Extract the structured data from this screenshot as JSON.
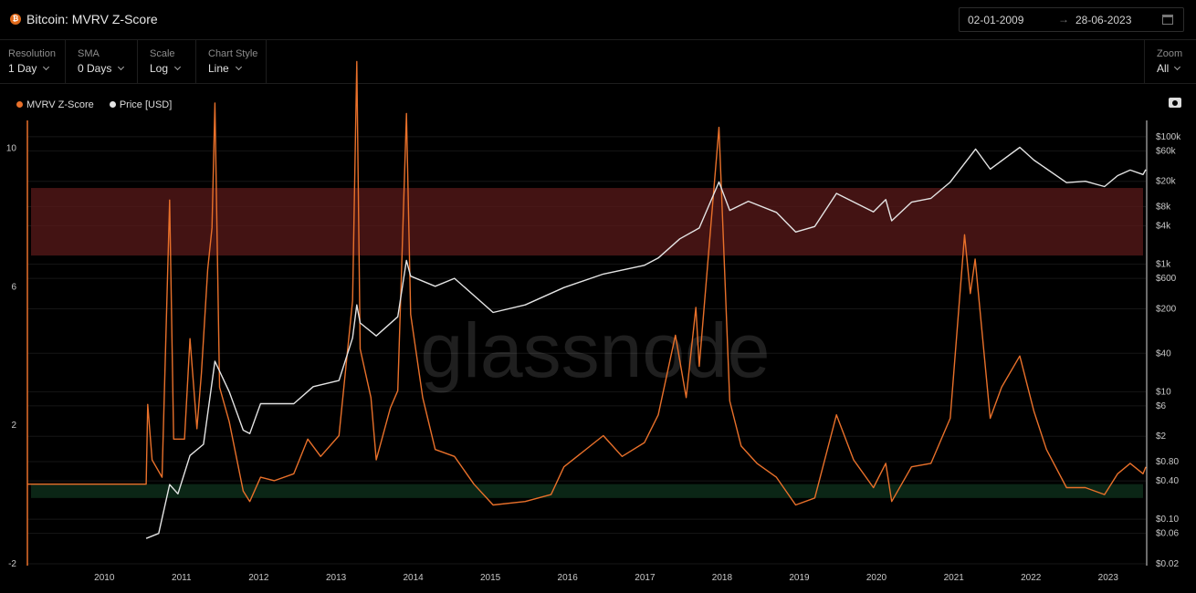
{
  "header": {
    "logo_glyph": "₿",
    "title": "Bitcoin: MVRV Z-Score",
    "date_from": "02-01-2009",
    "date_arrow": "→",
    "date_to": "28-06-2023"
  },
  "toolbar": {
    "controls": [
      {
        "label": "Resolution",
        "value": "1 Day"
      },
      {
        "label": "SMA",
        "value": "0 Days"
      },
      {
        "label": "Scale",
        "value": "Log"
      },
      {
        "label": "Chart Style",
        "value": "Line"
      }
    ],
    "zoom": {
      "label": "Zoom",
      "value": "All"
    }
  },
  "watermark": "glassnode",
  "colors": {
    "mvrv": "#e8702a",
    "price": "#e4e4e4",
    "red_band": "#5a1a1a",
    "green_band": "#0c2a18",
    "background": "#000000"
  },
  "chart_data": {
    "type": "line",
    "title": "Bitcoin: MVRV Z-Score",
    "legend_placement": "top-left",
    "grid": true,
    "x_range": [
      "2009-01-02",
      "2023-06-28"
    ],
    "x_ticks": [
      "2010",
      "2011",
      "2012",
      "2013",
      "2014",
      "2015",
      "2016",
      "2017",
      "2018",
      "2019",
      "2020",
      "2021",
      "2022",
      "2023"
    ],
    "left_axis": {
      "scale": "linear",
      "range": [
        -2,
        10.8
      ],
      "ticks": [
        "-2",
        "2",
        "6",
        "10"
      ]
    },
    "right_axis": {
      "scale": "log",
      "range": [
        0.02,
        180000
      ],
      "ticks": [
        "$100k",
        "$60k",
        "$20k",
        "$8k",
        "$4k",
        "$1k",
        "$600",
        "$200",
        "$40",
        "$10",
        "$6",
        "$2",
        "$0.80",
        "$0.40",
        "$0.10",
        "$0.06",
        "$0.02"
      ],
      "tick_values": [
        100000,
        60000,
        20000,
        8000,
        4000,
        1000,
        600,
        200,
        40,
        10,
        6,
        2,
        0.8,
        0.4,
        0.1,
        0.06,
        0.02
      ]
    },
    "bands": [
      {
        "axis": "left",
        "from": 6.9,
        "to": 8.85,
        "color": "red"
      },
      {
        "axis": "left",
        "from": -0.1,
        "to": 0.3,
        "color": "green"
      }
    ],
    "series": [
      {
        "name": "MVRV Z-Score",
        "axis": "left",
        "points": [
          [
            "2009-01-02",
            0.3
          ],
          [
            "2010-07-18",
            0.3
          ],
          [
            "2010-07-25",
            2.6
          ],
          [
            "2010-08-15",
            1.0
          ],
          [
            "2010-10-01",
            0.5
          ],
          [
            "2010-11-06",
            8.5
          ],
          [
            "2010-11-25",
            1.6
          ],
          [
            "2011-01-15",
            1.6
          ],
          [
            "2011-02-10",
            4.5
          ],
          [
            "2011-03-15",
            1.9
          ],
          [
            "2011-04-05",
            3.5
          ],
          [
            "2011-05-05",
            6.5
          ],
          [
            "2011-05-25",
            7.7
          ],
          [
            "2011-06-08",
            11.3
          ],
          [
            "2011-06-30",
            3.1
          ],
          [
            "2011-08-15",
            2.1
          ],
          [
            "2011-10-20",
            0.1
          ],
          [
            "2011-11-20",
            -0.2
          ],
          [
            "2012-01-10",
            0.5
          ],
          [
            "2012-03-15",
            0.4
          ],
          [
            "2012-06-15",
            0.6
          ],
          [
            "2012-08-20",
            1.6
          ],
          [
            "2012-10-20",
            1.1
          ],
          [
            "2013-01-15",
            1.7
          ],
          [
            "2013-03-20",
            5.6
          ],
          [
            "2013-04-09",
            12.5
          ],
          [
            "2013-04-25",
            4.2
          ],
          [
            "2013-06-15",
            2.8
          ],
          [
            "2013-07-10",
            1.0
          ],
          [
            "2013-09-15",
            2.5
          ],
          [
            "2013-10-20",
            3.0
          ],
          [
            "2013-11-30",
            11.0
          ],
          [
            "2013-12-20",
            5.2
          ],
          [
            "2014-02-15",
            2.8
          ],
          [
            "2014-04-15",
            1.3
          ],
          [
            "2014-07-15",
            1.1
          ],
          [
            "2014-10-15",
            0.3
          ],
          [
            "2015-01-14",
            -0.3
          ],
          [
            "2015-06-15",
            -0.2
          ],
          [
            "2015-10-15",
            0.0
          ],
          [
            "2015-12-15",
            0.8
          ],
          [
            "2016-06-18",
            1.7
          ],
          [
            "2016-09-15",
            1.1
          ],
          [
            "2016-12-30",
            1.5
          ],
          [
            "2017-03-05",
            2.3
          ],
          [
            "2017-05-25",
            4.6
          ],
          [
            "2017-07-15",
            2.8
          ],
          [
            "2017-08-30",
            5.4
          ],
          [
            "2017-09-15",
            3.7
          ],
          [
            "2017-12-17",
            10.6
          ],
          [
            "2018-02-06",
            2.7
          ],
          [
            "2018-04-01",
            1.4
          ],
          [
            "2018-06-15",
            0.9
          ],
          [
            "2018-09-15",
            0.5
          ],
          [
            "2018-12-15",
            -0.3
          ],
          [
            "2019-03-15",
            -0.1
          ],
          [
            "2019-06-26",
            2.3
          ],
          [
            "2019-09-15",
            1.0
          ],
          [
            "2019-12-18",
            0.2
          ],
          [
            "2020-02-14",
            0.9
          ],
          [
            "2020-03-13",
            -0.2
          ],
          [
            "2020-06-15",
            0.8
          ],
          [
            "2020-09-15",
            0.9
          ],
          [
            "2020-12-15",
            2.2
          ],
          [
            "2021-02-21",
            7.5
          ],
          [
            "2021-03-20",
            5.8
          ],
          [
            "2021-04-12",
            6.8
          ],
          [
            "2021-06-22",
            2.2
          ],
          [
            "2021-08-15",
            3.1
          ],
          [
            "2021-11-09",
            4.0
          ],
          [
            "2022-01-15",
            2.4
          ],
          [
            "2022-03-15",
            1.3
          ],
          [
            "2022-06-18",
            0.2
          ],
          [
            "2022-09-15",
            0.2
          ],
          [
            "2022-12-15",
            0.0
          ],
          [
            "2023-02-15",
            0.6
          ],
          [
            "2023-04-15",
            0.9
          ],
          [
            "2023-06-15",
            0.6
          ],
          [
            "2023-06-28",
            0.8
          ]
        ]
      },
      {
        "name": "Price [USD]",
        "axis": "right",
        "points": [
          [
            "2010-07-18",
            0.05
          ],
          [
            "2010-09-15",
            0.06
          ],
          [
            "2010-11-06",
            0.35
          ],
          [
            "2010-12-15",
            0.25
          ],
          [
            "2011-02-10",
            1.0
          ],
          [
            "2011-04-15",
            1.5
          ],
          [
            "2011-06-08",
            30
          ],
          [
            "2011-08-15",
            10
          ],
          [
            "2011-10-20",
            2.5
          ],
          [
            "2011-11-20",
            2.2
          ],
          [
            "2012-01-10",
            6.5
          ],
          [
            "2012-06-15",
            6.5
          ],
          [
            "2012-09-15",
            12
          ],
          [
            "2013-01-15",
            15
          ],
          [
            "2013-03-20",
            70
          ],
          [
            "2013-04-09",
            230
          ],
          [
            "2013-04-25",
            120
          ],
          [
            "2013-07-10",
            75
          ],
          [
            "2013-10-20",
            150
          ],
          [
            "2013-11-30",
            1150
          ],
          [
            "2013-12-20",
            650
          ],
          [
            "2014-04-15",
            450
          ],
          [
            "2014-07-15",
            600
          ],
          [
            "2015-01-14",
            175
          ],
          [
            "2015-06-15",
            230
          ],
          [
            "2015-12-15",
            430
          ],
          [
            "2016-06-18",
            700
          ],
          [
            "2016-12-30",
            960
          ],
          [
            "2017-03-05",
            1250
          ],
          [
            "2017-06-15",
            2500
          ],
          [
            "2017-09-15",
            3700
          ],
          [
            "2017-12-17",
            19500
          ],
          [
            "2018-02-06",
            7000
          ],
          [
            "2018-05-05",
            9700
          ],
          [
            "2018-09-15",
            6500
          ],
          [
            "2018-12-15",
            3200
          ],
          [
            "2019-03-15",
            3900
          ],
          [
            "2019-06-26",
            12900
          ],
          [
            "2019-12-18",
            6600
          ],
          [
            "2020-02-14",
            10300
          ],
          [
            "2020-03-13",
            4800
          ],
          [
            "2020-06-15",
            9400
          ],
          [
            "2020-09-15",
            10800
          ],
          [
            "2020-12-15",
            19400
          ],
          [
            "2021-04-14",
            64000
          ],
          [
            "2021-06-22",
            31000
          ],
          [
            "2021-11-09",
            68000
          ],
          [
            "2022-01-15",
            43000
          ],
          [
            "2022-06-18",
            19000
          ],
          [
            "2022-09-15",
            20000
          ],
          [
            "2022-12-15",
            16500
          ],
          [
            "2023-02-15",
            24500
          ],
          [
            "2023-04-15",
            30000
          ],
          [
            "2023-06-15",
            25500
          ],
          [
            "2023-06-28",
            30500
          ]
        ]
      }
    ]
  }
}
